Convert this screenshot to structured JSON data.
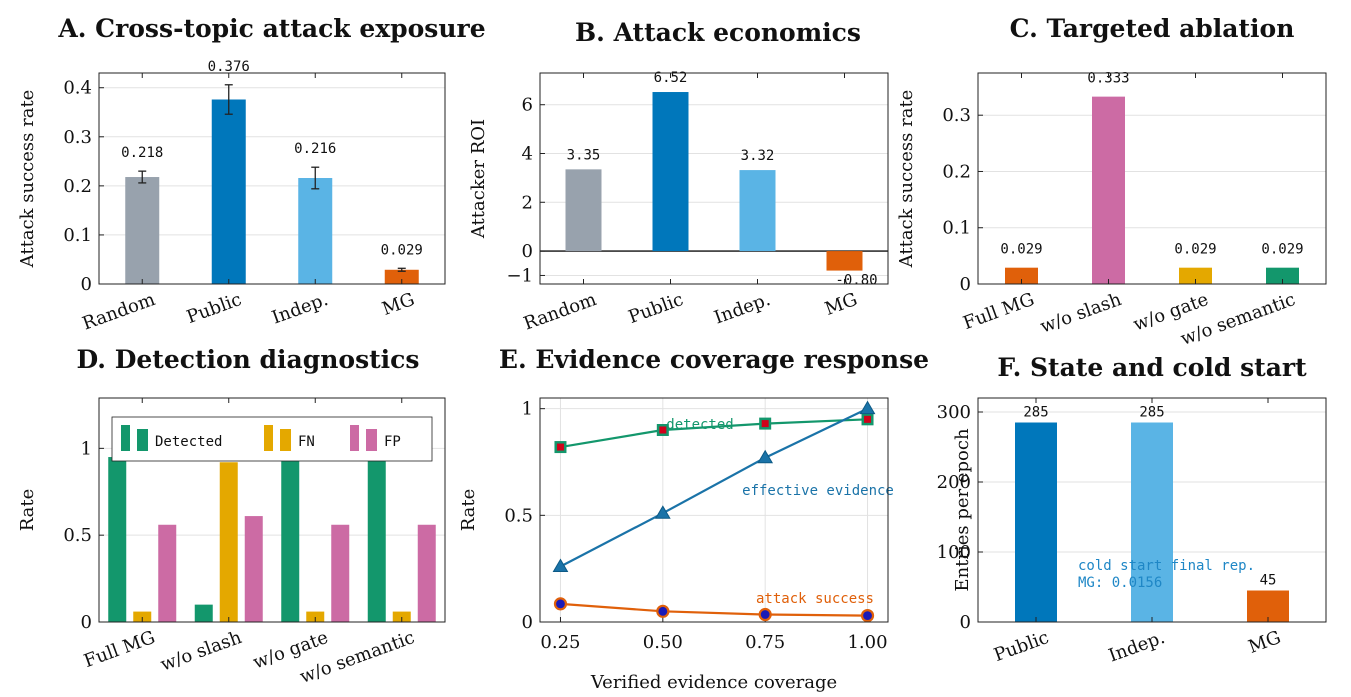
{
  "colors": {
    "gray": "#98a2ad",
    "blue": "#0077bb",
    "lightblue": "#5ab4e5",
    "orange": "#e0600a",
    "pink": "#cc6ba4",
    "yellow": "#e4a800",
    "green": "#13976c",
    "red": "#d0021b",
    "darkblue": "#1a1ab8"
  },
  "chart_data": [
    {
      "id": "A",
      "type": "bar",
      "title": "A. Cross-topic attack exposure",
      "ylabel": "Attack success rate",
      "xlabel": "",
      "categories": [
        "Random",
        "Public",
        "Indep.",
        "MG"
      ],
      "values": [
        0.218,
        0.376,
        0.216,
        0.029
      ],
      "labels": [
        "0.218",
        "0.376",
        "0.216",
        "0.029"
      ],
      "errors": [
        0.012,
        0.03,
        0.022,
        0.003
      ],
      "colors": [
        "#98a2ad",
        "#0077bb",
        "#5ab4e5",
        "#e0600a"
      ],
      "ylim": [
        0,
        0.43
      ],
      "yticks": [
        0,
        0.1,
        0.2,
        0.3,
        0.4
      ],
      "yticklabels": [
        "0",
        "0.1",
        "0.2",
        "0.3",
        "0.4"
      ],
      "grid": true
    },
    {
      "id": "B",
      "type": "bar",
      "title": "B. Attack economics",
      "ylabel": "Attacker ROI",
      "xlabel": "",
      "categories": [
        "Random",
        "Public",
        "Indep.",
        "MG"
      ],
      "values": [
        3.35,
        6.52,
        3.32,
        -0.8
      ],
      "labels": [
        "3.35",
        "6.52",
        "3.32",
        "-0.80"
      ],
      "colors": [
        "#98a2ad",
        "#0077bb",
        "#5ab4e5",
        "#e0600a"
      ],
      "ylim": [
        -1.35,
        7.3
      ],
      "yticks": [
        -1,
        0,
        2,
        4,
        6
      ],
      "yticklabels": [
        "−1",
        "0",
        "2",
        "4",
        "6"
      ],
      "grid": true,
      "zero_line": true
    },
    {
      "id": "C",
      "type": "bar",
      "title": "C. Targeted ablation",
      "ylabel": "Attack success rate",
      "xlabel": "",
      "categories": [
        "Full MG",
        "w/o slash",
        "w/o gate",
        "w/o semantic"
      ],
      "values": [
        0.029,
        0.333,
        0.029,
        0.029
      ],
      "labels": [
        "0.029",
        "0.333",
        "0.029",
        "0.029"
      ],
      "colors": [
        "#e0600a",
        "#cc6ba4",
        "#e4a800",
        "#13976c"
      ],
      "ylim": [
        0,
        0.375
      ],
      "yticks": [
        0,
        0.1,
        0.2,
        0.3
      ],
      "yticklabels": [
        "0",
        "0.1",
        "0.2",
        "0.3"
      ],
      "grid": true
    },
    {
      "id": "D",
      "type": "bar",
      "title": "D. Detection diagnostics",
      "ylabel": "Rate",
      "xlabel": "",
      "categories": [
        "Full MG",
        "w/o slash",
        "w/o gate",
        "w/o semantic"
      ],
      "series": [
        {
          "name": "Detected",
          "values": [
            0.95,
            0.1,
            0.95,
            0.95
          ],
          "color": "#13976c"
        },
        {
          "name": "FN",
          "values": [
            0.06,
            0.92,
            0.06,
            0.06
          ],
          "color": "#e4a800"
        },
        {
          "name": "FP",
          "values": [
            0.56,
            0.61,
            0.56,
            0.56
          ],
          "color": "#cc6ba4"
        }
      ],
      "ylim": [
        0,
        1.29
      ],
      "yticks": [
        0,
        0.5,
        1
      ],
      "yticklabels": [
        "0",
        "0.5",
        "1"
      ],
      "legend": "top",
      "grid": true
    },
    {
      "id": "E",
      "type": "line",
      "title": "E. Evidence coverage response",
      "ylabel": "Rate",
      "xlabel": "Verified evidence coverage",
      "x": [
        0.25,
        0.5,
        0.75,
        1.0
      ],
      "xticklabels": [
        "0.25",
        "0.50",
        "0.75",
        "1.00"
      ],
      "series": [
        {
          "name": "detected",
          "values": [
            0.82,
            0.9,
            0.93,
            0.95
          ],
          "color": "#13976c",
          "marker": "square",
          "marker_fill": "#d0021b"
        },
        {
          "name": "effective evidence",
          "values": [
            0.26,
            0.51,
            0.77,
            1.0
          ],
          "color": "#1a73a8",
          "marker": "triangle",
          "marker_fill": "#1a73a8"
        },
        {
          "name": "attack success",
          "values": [
            0.085,
            0.05,
            0.035,
            0.03
          ],
          "color": "#e0600a",
          "marker": "circle",
          "marker_fill": "#1a1ab8"
        }
      ],
      "xlim": [
        0.2,
        1.05
      ],
      "ylim": [
        0,
        1.05
      ],
      "yticks": [
        0,
        0.5,
        1
      ],
      "yticklabels": [
        "0",
        "0.5",
        "1"
      ],
      "grid": true
    },
    {
      "id": "F",
      "type": "bar",
      "title": "F. State and cold start",
      "ylabel": "Entries per epoch",
      "xlabel": "",
      "categories": [
        "Public",
        "Indep.",
        "MG"
      ],
      "values": [
        285,
        285,
        45
      ],
      "labels": [
        "285",
        "285",
        "45"
      ],
      "colors": [
        "#0077bb",
        "#5ab4e5",
        "#e0600a"
      ],
      "ylim": [
        0,
        320
      ],
      "yticks": [
        0,
        100,
        200,
        300
      ],
      "yticklabels": [
        "0",
        "100",
        "200",
        "300"
      ],
      "annotation": [
        "cold start final rep.",
        "MG: 0.0156"
      ],
      "grid": true
    }
  ]
}
